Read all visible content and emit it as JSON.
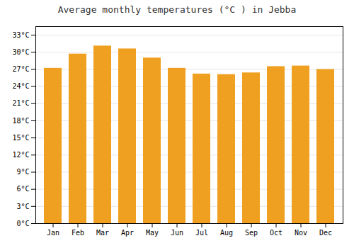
{
  "chart_data": {
    "type": "bar",
    "title": "Average monthly temperatures (°C ) in Jebba",
    "categories": [
      "Jan",
      "Feb",
      "Mar",
      "Apr",
      "May",
      "Jun",
      "Jul",
      "Aug",
      "Sep",
      "Oct",
      "Nov",
      "Dec"
    ],
    "values": [
      27.2,
      29.7,
      31.1,
      30.6,
      29.0,
      27.2,
      26.2,
      26.1,
      26.4,
      27.5,
      27.6,
      27.0
    ],
    "color": "#F0A020",
    "ylim": [
      0,
      34.5
    ],
    "yticks": [
      {
        "value": 0,
        "label": "0°C"
      },
      {
        "value": 3,
        "label": "3°C"
      },
      {
        "value": 6,
        "label": "6°C"
      },
      {
        "value": 9,
        "label": "9°C"
      },
      {
        "value": 12,
        "label": "12°C"
      },
      {
        "value": 15,
        "label": "15°C"
      },
      {
        "value": 18,
        "label": "18°C"
      },
      {
        "value": 21,
        "label": "21°C"
      },
      {
        "value": 24,
        "label": "24°C"
      },
      {
        "value": 27,
        "label": "27°C"
      },
      {
        "value": 30,
        "label": "30°C"
      },
      {
        "value": 33,
        "label": "33°C"
      }
    ],
    "grid": true
  }
}
